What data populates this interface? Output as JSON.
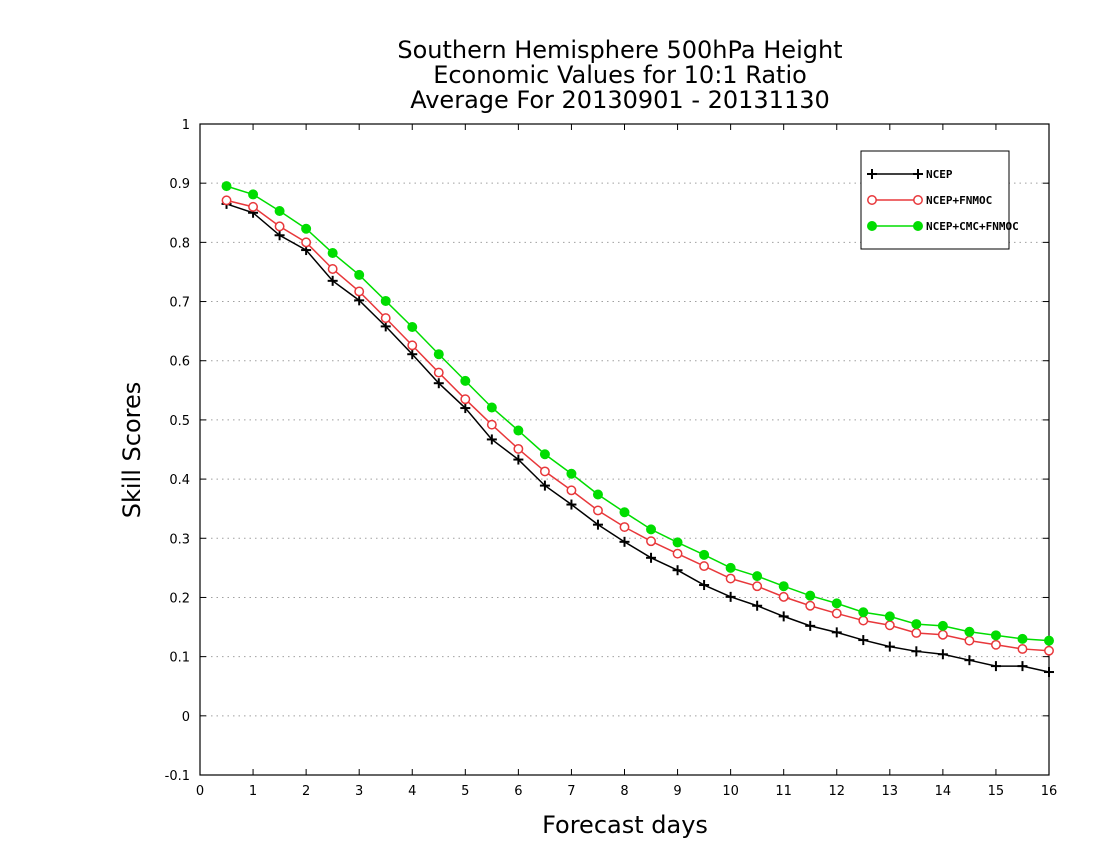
{
  "chart_data": {
    "type": "line",
    "title_lines": [
      "Southern Hemisphere 500hPa Height",
      "Economic Values for 10:1 Ratio",
      "Average For 20130901 - 20131130"
    ],
    "xlabel": "Forecast days",
    "ylabel": "Skill Scores",
    "xlim": [
      0,
      16
    ],
    "ylim": [
      -0.1,
      1
    ],
    "x_ticks": [
      0,
      1,
      2,
      3,
      4,
      5,
      6,
      7,
      8,
      9,
      10,
      11,
      12,
      13,
      14,
      15,
      16
    ],
    "x_tick_labels": [
      "0",
      "1",
      "2",
      "3",
      "4",
      "5",
      "6",
      "7",
      "8",
      "9",
      "10",
      "11",
      "12",
      "13",
      "14",
      "15",
      "16"
    ],
    "y_ticks": [
      -0.1,
      0,
      0.1,
      0.2,
      0.3,
      0.4,
      0.5,
      0.6,
      0.7,
      0.8,
      0.9,
      1
    ],
    "y_tick_labels": [
      "-0.1",
      "0",
      "0.1",
      "0.2",
      "0.3",
      "0.4",
      "0.5",
      "0.6",
      "0.7",
      "0.8",
      "0.9",
      "1"
    ],
    "grid": "horizontal dotted",
    "legend_position": "top-right",
    "x": [
      0.5,
      1,
      1.5,
      2,
      2.5,
      3,
      3.5,
      4,
      4.5,
      5,
      5.5,
      6,
      6.5,
      7,
      7.5,
      8,
      8.5,
      9,
      9.5,
      10,
      10.5,
      11,
      11.5,
      12,
      12.5,
      13,
      13.5,
      14,
      14.5,
      15,
      15.5,
      16
    ],
    "series": [
      {
        "name": "NCEP",
        "color": "#000000",
        "marker": "plus",
        "values": [
          0.865,
          0.85,
          0.812,
          0.787,
          0.735,
          0.702,
          0.658,
          0.611,
          0.562,
          0.52,
          0.467,
          0.433,
          0.389,
          0.357,
          0.323,
          0.294,
          0.267,
          0.246,
          0.221,
          0.201,
          0.186,
          0.168,
          0.152,
          0.141,
          0.128,
          0.117,
          0.109,
          0.104,
          0.094,
          0.084,
          0.084,
          0.074
        ]
      },
      {
        "name": "NCEP+FNMOC",
        "color": "#e8383b",
        "marker": "open-circle",
        "values": [
          0.871,
          0.86,
          0.827,
          0.8,
          0.755,
          0.717,
          0.672,
          0.626,
          0.58,
          0.535,
          0.492,
          0.451,
          0.413,
          0.381,
          0.347,
          0.319,
          0.295,
          0.274,
          0.253,
          0.232,
          0.219,
          0.201,
          0.186,
          0.173,
          0.161,
          0.153,
          0.14,
          0.137,
          0.127,
          0.12,
          0.113,
          0.11
        ]
      },
      {
        "name": "NCEP+CMC+FNMOC",
        "color": "#00dd00",
        "marker": "filled-circle",
        "values": [
          0.895,
          0.881,
          0.853,
          0.823,
          0.782,
          0.745,
          0.701,
          0.657,
          0.611,
          0.566,
          0.521,
          0.482,
          0.442,
          0.409,
          0.374,
          0.344,
          0.315,
          0.293,
          0.272,
          0.25,
          0.236,
          0.219,
          0.203,
          0.19,
          0.175,
          0.168,
          0.155,
          0.152,
          0.142,
          0.136,
          0.13,
          0.127
        ]
      }
    ]
  }
}
